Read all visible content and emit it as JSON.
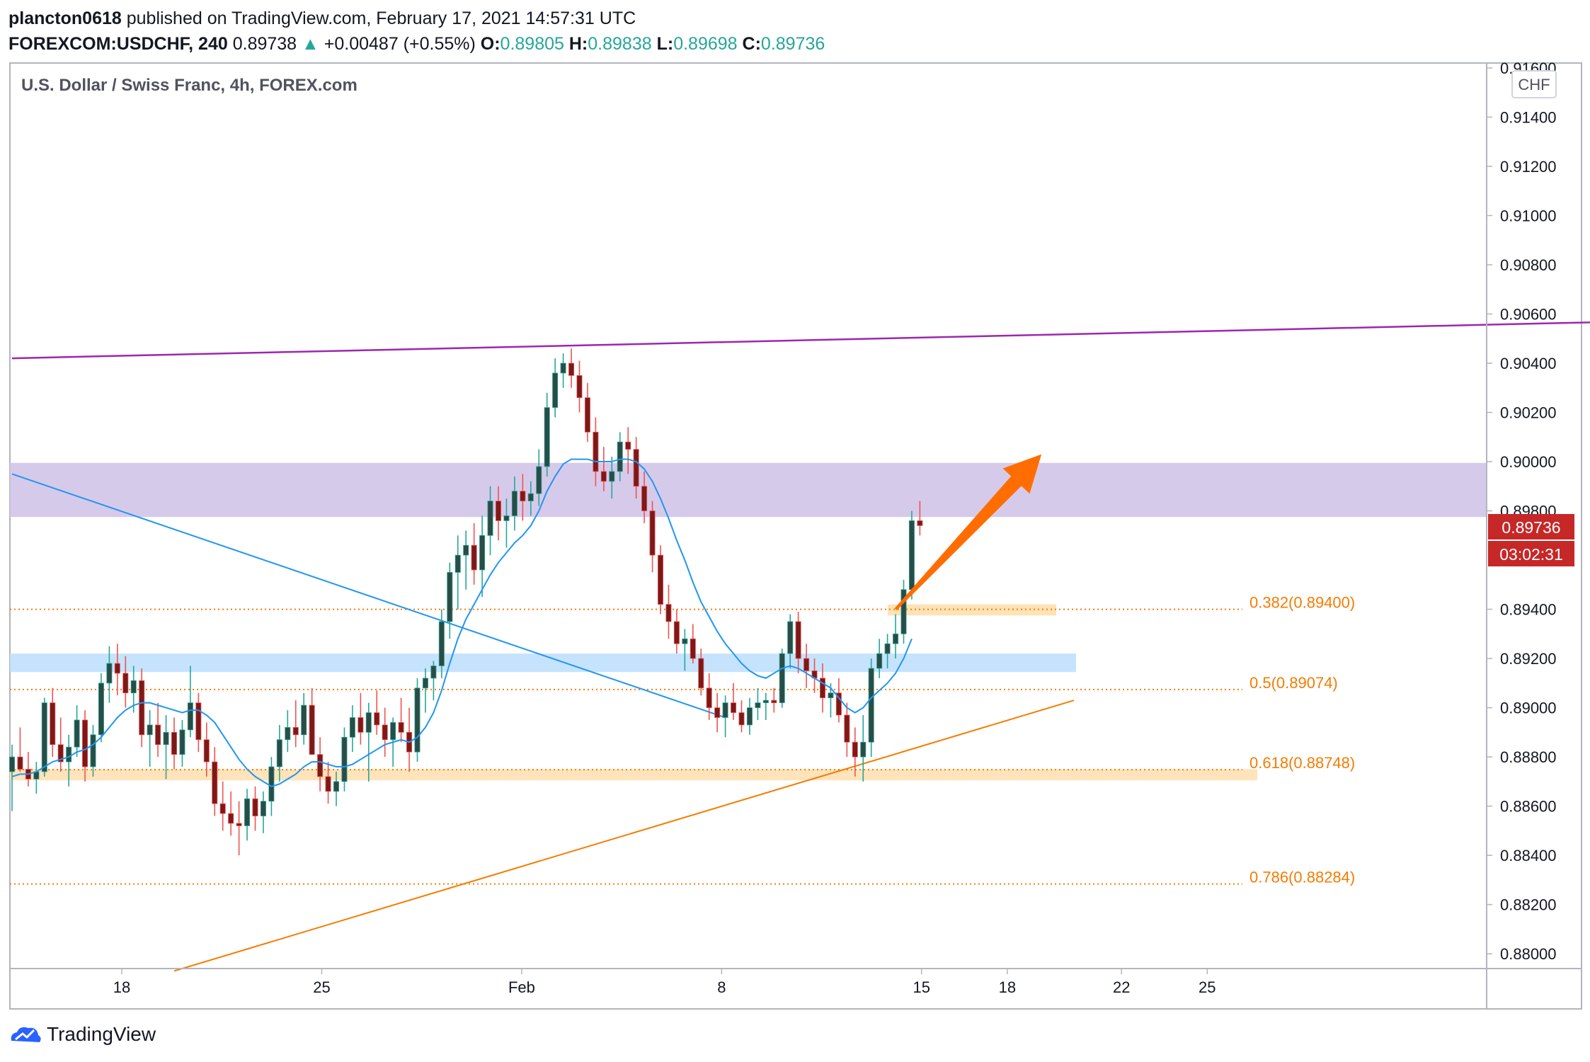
{
  "header": {
    "publisher": "plancton0618",
    "published_text": "published on TradingView.com, February 17, 2021 14:57:31 UTC",
    "symbol": "FOREXCOM:USDCHF, 240",
    "last_price": "0.89738",
    "change": "+0.00487 (+0.55%)",
    "o_label": "O:",
    "o": "0.89805",
    "h_label": "H:",
    "h": "0.89838",
    "l_label": "L:",
    "l": "0.89698",
    "c_label": "C:",
    "c": "0.89736"
  },
  "footer": {
    "brand": "TradingView"
  },
  "colors": {
    "bull": "#26a69a",
    "bear": "#ef5350",
    "body_bull": "#2b4c46",
    "body_bear": "#7a1a1a",
    "ma": "#2196f3",
    "fib": "#f57c00",
    "purple_line": "#9c27b0",
    "purple_zone": "#d1c4e9",
    "blue_zone": "#bbdefb",
    "orange_zone": "#ffe0b2",
    "price_tag": "#c62828",
    "arrow": "#ff6d00"
  },
  "chart_data": {
    "type": "candlestick",
    "title": "U.S. Dollar / Swiss Franc, 4h, FOREX.com",
    "currency_label": "CHF",
    "y_ticks": [
      "0.91600",
      "0.91400",
      "0.91200",
      "0.91000",
      "0.90800",
      "0.90600",
      "0.90400",
      "0.90200",
      "0.90000",
      "0.89800",
      "0.89400",
      "0.89200",
      "0.89000",
      "0.88800",
      "0.88600",
      "0.88400",
      "0.88200",
      "0.88000"
    ],
    "ylim": [
      0.8794,
      0.9162
    ],
    "x_ticks": [
      {
        "label": "18",
        "day": 3
      },
      {
        "label": "25",
        "day": 10
      },
      {
        "label": "Feb",
        "day": 17
      },
      {
        "label": "8",
        "day": 24
      },
      {
        "label": "15",
        "day": 31
      },
      {
        "label": "18",
        "day": 34
      },
      {
        "label": "22",
        "day": 38
      },
      {
        "label": "25",
        "day": 41
      }
    ],
    "current_price_tag": "0.89736",
    "countdown_tag": "03:02:31",
    "fib_levels": [
      {
        "label": "0.382(0.89400)",
        "value": 0.894
      },
      {
        "label": "0.5(0.89074)",
        "value": 0.89074
      },
      {
        "label": "0.618(0.88748)",
        "value": 0.88748
      },
      {
        "label": "0.786(0.88284)",
        "value": 0.88284
      }
    ],
    "zones": [
      {
        "name": "purple-resistance-zone",
        "from": 0.89775,
        "to": 0.89995
      },
      {
        "name": "blue-support-zone",
        "from": 0.89145,
        "to": 0.8922
      },
      {
        "name": "orange-support-zone",
        "from": 0.88705,
        "to": 0.8875
      },
      {
        "name": "orange-breakout-zone",
        "from": 0.89375,
        "to": 0.8942
      }
    ],
    "ohlc": [
      [
        0.8874,
        0.8885,
        0.8858,
        0.888
      ],
      [
        0.888,
        0.8892,
        0.8874,
        0.8875
      ],
      [
        0.8875,
        0.8882,
        0.8868,
        0.8871
      ],
      [
        0.8871,
        0.8878,
        0.8865,
        0.8874
      ],
      [
        0.8874,
        0.8904,
        0.8872,
        0.8902
      ],
      [
        0.8902,
        0.8908,
        0.888,
        0.8885
      ],
      [
        0.8885,
        0.8896,
        0.8874,
        0.8878
      ],
      [
        0.8878,
        0.8889,
        0.8868,
        0.8884
      ],
      [
        0.8884,
        0.8901,
        0.888,
        0.8895
      ],
      [
        0.8895,
        0.8899,
        0.887,
        0.8876
      ],
      [
        0.8876,
        0.8893,
        0.8872,
        0.8889
      ],
      [
        0.8889,
        0.8914,
        0.8886,
        0.891
      ],
      [
        0.891,
        0.8925,
        0.8902,
        0.8918
      ],
      [
        0.8918,
        0.8926,
        0.8905,
        0.8914
      ],
      [
        0.8914,
        0.8921,
        0.89,
        0.8906
      ],
      [
        0.8906,
        0.8917,
        0.8898,
        0.8911
      ],
      [
        0.8911,
        0.8916,
        0.8884,
        0.8889
      ],
      [
        0.8889,
        0.8899,
        0.8876,
        0.8893
      ],
      [
        0.8893,
        0.8902,
        0.888,
        0.8885
      ],
      [
        0.8885,
        0.8897,
        0.8871,
        0.889
      ],
      [
        0.889,
        0.8896,
        0.8875,
        0.8881
      ],
      [
        0.8881,
        0.8895,
        0.8876,
        0.8891
      ],
      [
        0.8891,
        0.8917,
        0.8888,
        0.8902
      ],
      [
        0.8902,
        0.8906,
        0.8882,
        0.8887
      ],
      [
        0.8887,
        0.8894,
        0.8872,
        0.8878
      ],
      [
        0.8878,
        0.8884,
        0.8856,
        0.8861
      ],
      [
        0.8861,
        0.887,
        0.885,
        0.8857
      ],
      [
        0.8857,
        0.8866,
        0.8848,
        0.8853
      ],
      [
        0.8853,
        0.8862,
        0.884,
        0.8852
      ],
      [
        0.8852,
        0.8867,
        0.8846,
        0.8863
      ],
      [
        0.8863,
        0.8868,
        0.885,
        0.8856
      ],
      [
        0.8856,
        0.8866,
        0.8849,
        0.8862
      ],
      [
        0.8862,
        0.888,
        0.8856,
        0.8876
      ],
      [
        0.8876,
        0.8893,
        0.887,
        0.8887
      ],
      [
        0.8887,
        0.8899,
        0.8882,
        0.8892
      ],
      [
        0.8892,
        0.8903,
        0.8884,
        0.8889
      ],
      [
        0.8889,
        0.8906,
        0.8885,
        0.8901
      ],
      [
        0.8901,
        0.8908,
        0.8884,
        0.8881
      ],
      [
        0.8881,
        0.8888,
        0.8866,
        0.8872
      ],
      [
        0.8872,
        0.8878,
        0.8861,
        0.8866
      ],
      [
        0.8866,
        0.8874,
        0.886,
        0.887
      ],
      [
        0.887,
        0.8892,
        0.8866,
        0.8888
      ],
      [
        0.8888,
        0.8901,
        0.8882,
        0.8896
      ],
      [
        0.8896,
        0.8906,
        0.8885,
        0.889
      ],
      [
        0.889,
        0.8902,
        0.887,
        0.8898
      ],
      [
        0.8898,
        0.8907,
        0.8889,
        0.8893
      ],
      [
        0.8893,
        0.89,
        0.888,
        0.8887
      ],
      [
        0.8887,
        0.8896,
        0.8876,
        0.8894
      ],
      [
        0.8894,
        0.8904,
        0.8886,
        0.889
      ],
      [
        0.889,
        0.89,
        0.8874,
        0.8882
      ],
      [
        0.8882,
        0.8912,
        0.8878,
        0.8908
      ],
      [
        0.8908,
        0.8916,
        0.8898,
        0.8912
      ],
      [
        0.8912,
        0.8919,
        0.8903,
        0.8917
      ],
      [
        0.8917,
        0.894,
        0.8912,
        0.8935
      ],
      [
        0.8935,
        0.8959,
        0.8928,
        0.8955
      ],
      [
        0.8955,
        0.897,
        0.894,
        0.8962
      ],
      [
        0.8962,
        0.8972,
        0.8948,
        0.8966
      ],
      [
        0.8966,
        0.8975,
        0.895,
        0.8956
      ],
      [
        0.8956,
        0.8978,
        0.8945,
        0.897
      ],
      [
        0.897,
        0.899,
        0.8962,
        0.8984
      ],
      [
        0.8984,
        0.899,
        0.8968,
        0.8976
      ],
      [
        0.8976,
        0.8985,
        0.8965,
        0.8978
      ],
      [
        0.8978,
        0.8994,
        0.8972,
        0.8988
      ],
      [
        0.8988,
        0.8995,
        0.8976,
        0.8984
      ],
      [
        0.8984,
        0.8992,
        0.8978,
        0.8987
      ],
      [
        0.8987,
        0.9005,
        0.8982,
        0.8998
      ],
      [
        0.8998,
        0.9028,
        0.8994,
        0.9022
      ],
      [
        0.9022,
        0.9042,
        0.9018,
        0.9036
      ],
      [
        0.9036,
        0.9044,
        0.903,
        0.904
      ],
      [
        0.904,
        0.9046,
        0.903,
        0.9035
      ],
      [
        0.9035,
        0.9041,
        0.902,
        0.9026
      ],
      [
        0.9026,
        0.9032,
        0.9008,
        0.9012
      ],
      [
        0.9012,
        0.9018,
        0.899,
        0.8996
      ],
      [
        0.8996,
        0.9006,
        0.8988,
        0.8992
      ],
      [
        0.8992,
        0.9002,
        0.8985,
        0.8996
      ],
      [
        0.8996,
        0.9012,
        0.8992,
        0.9008
      ],
      [
        0.9008,
        0.9014,
        0.8995,
        0.9005
      ],
      [
        0.9005,
        0.901,
        0.8985,
        0.899
      ],
      [
        0.899,
        0.8996,
        0.8975,
        0.898
      ],
      [
        0.898,
        0.8984,
        0.8955,
        0.8962
      ],
      [
        0.8962,
        0.8966,
        0.8938,
        0.8942
      ],
      [
        0.8942,
        0.895,
        0.8928,
        0.8935
      ],
      [
        0.8935,
        0.894,
        0.8922,
        0.8926
      ],
      [
        0.8926,
        0.8932,
        0.8915,
        0.8928
      ],
      [
        0.8928,
        0.8934,
        0.8918,
        0.892
      ],
      [
        0.892,
        0.8924,
        0.8905,
        0.8908
      ],
      [
        0.8908,
        0.8914,
        0.8895,
        0.89
      ],
      [
        0.89,
        0.8906,
        0.889,
        0.8896
      ],
      [
        0.8896,
        0.8905,
        0.8888,
        0.8902
      ],
      [
        0.8902,
        0.891,
        0.8895,
        0.8898
      ],
      [
        0.8898,
        0.8903,
        0.889,
        0.8893
      ],
      [
        0.8893,
        0.8904,
        0.8889,
        0.89
      ],
      [
        0.89,
        0.8908,
        0.8895,
        0.8902
      ],
      [
        0.8902,
        0.8906,
        0.8895,
        0.8903
      ],
      [
        0.8903,
        0.8908,
        0.8898,
        0.8902
      ],
      [
        0.8902,
        0.8924,
        0.89,
        0.8922
      ],
      [
        0.8922,
        0.8938,
        0.8916,
        0.8935
      ],
      [
        0.8935,
        0.8939,
        0.8914,
        0.892
      ],
      [
        0.892,
        0.8926,
        0.8908,
        0.8915
      ],
      [
        0.8915,
        0.892,
        0.8906,
        0.8912
      ],
      [
        0.8912,
        0.8918,
        0.8898,
        0.8904
      ],
      [
        0.8904,
        0.891,
        0.8896,
        0.8906
      ],
      [
        0.8906,
        0.8912,
        0.8894,
        0.8897
      ],
      [
        0.8897,
        0.8902,
        0.888,
        0.8886
      ],
      [
        0.8886,
        0.8892,
        0.8872,
        0.888
      ],
      [
        0.888,
        0.8897,
        0.887,
        0.8886
      ],
      [
        0.8886,
        0.892,
        0.888,
        0.8916
      ],
      [
        0.8916,
        0.8928,
        0.8912,
        0.8922
      ],
      [
        0.8922,
        0.893,
        0.8916,
        0.8926
      ],
      [
        0.8926,
        0.8938,
        0.892,
        0.893
      ],
      [
        0.893,
        0.8952,
        0.8926,
        0.8948
      ],
      [
        0.8948,
        0.898,
        0.8944,
        0.8976
      ],
      [
        0.8976,
        0.8984,
        0.897,
        0.8974
      ]
    ],
    "ma": [
      0.8872,
      0.8873,
      0.8873,
      0.8874,
      0.8876,
      0.8878,
      0.8879,
      0.888,
      0.8882,
      0.8883,
      0.8885,
      0.8888,
      0.8892,
      0.8896,
      0.8899,
      0.8901,
      0.8902,
      0.8902,
      0.8901,
      0.89,
      0.8899,
      0.8898,
      0.8899,
      0.8899,
      0.8897,
      0.8894,
      0.8889,
      0.8884,
      0.8879,
      0.8875,
      0.8872,
      0.887,
      0.8868,
      0.8869,
      0.8871,
      0.8873,
      0.8876,
      0.8878,
      0.8878,
      0.8877,
      0.8876,
      0.8876,
      0.8877,
      0.8879,
      0.8881,
      0.8883,
      0.8885,
      0.8886,
      0.8887,
      0.8886,
      0.8888,
      0.8892,
      0.8898,
      0.8907,
      0.8918,
      0.8928,
      0.8936,
      0.8942,
      0.8948,
      0.8954,
      0.8959,
      0.8963,
      0.8967,
      0.897,
      0.8974,
      0.898,
      0.8988,
      0.8994,
      0.8999,
      0.9001,
      0.9001,
      0.9001,
      0.9,
      0.9,
      0.9,
      0.9001,
      0.9001,
      0.9,
      0.8997,
      0.8992,
      0.8985,
      0.8977,
      0.8968,
      0.896,
      0.8951,
      0.8943,
      0.8937,
      0.8931,
      0.8926,
      0.8922,
      0.8918,
      0.8915,
      0.8913,
      0.8912,
      0.8914,
      0.8916,
      0.8917,
      0.8916,
      0.8914,
      0.8912,
      0.891,
      0.8908,
      0.8904,
      0.89,
      0.8898,
      0.89,
      0.8904,
      0.8907,
      0.891,
      0.8914,
      0.892,
      0.8928
    ],
    "purple_trendline": [
      {
        "i": 0,
        "v": 0.9042
      },
      {
        "i": 200,
        "v": 0.9057
      }
    ],
    "blue_trendline": [
      {
        "i": 0,
        "v": 0.8995
      },
      {
        "i": 88,
        "v": 0.8896
      }
    ],
    "orange_trendline": [
      {
        "i": 20,
        "v": 0.8793
      },
      {
        "i": 131,
        "v": 0.8903
      }
    ],
    "arrow": [
      {
        "i": 109,
        "v": 0.894
      },
      {
        "i": 127,
        "v": 0.9003
      }
    ]
  }
}
